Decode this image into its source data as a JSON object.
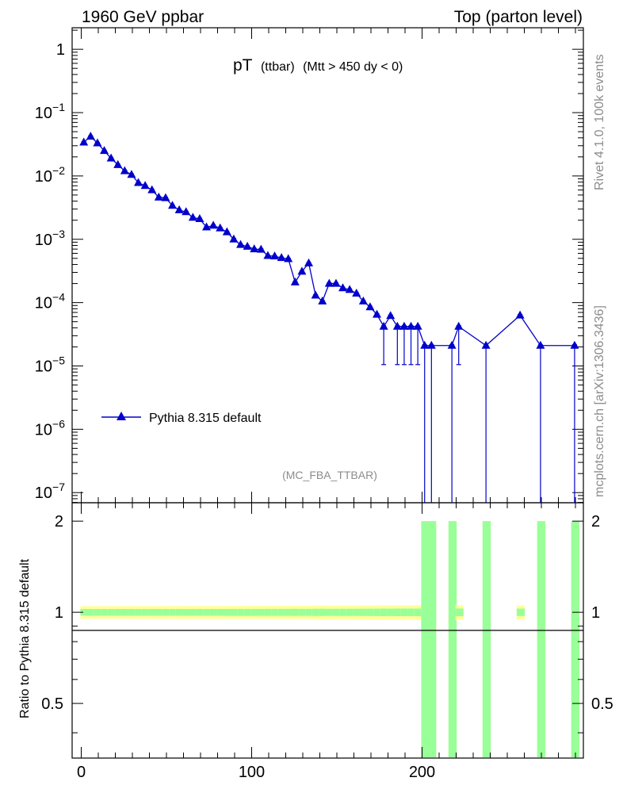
{
  "header": {
    "left": "1960 GeV ppbar",
    "right": "Top (parton level)"
  },
  "side": {
    "rivet": "Rivet 4.1.0,  100k events",
    "mcplots": "mcplots.cern.ch [arXiv:1306.3436]"
  },
  "title": {
    "main": "pT",
    "sub1": "(ttbar)",
    "sub2": "(Mtt > 450 dy < 0)"
  },
  "analysis_tag": "(MC_FBA_TTBAR)",
  "legend": {
    "label": "Pythia 8.315 default"
  },
  "colors": {
    "series": "#0000cc",
    "band_inner": "#99ff99",
    "band_outer": "#ffff99"
  },
  "y_top_ticks": [
    {
      "base": "1",
      "exp": ""
    },
    {
      "base": "10",
      "exp": "−1"
    },
    {
      "base": "10",
      "exp": "−2"
    },
    {
      "base": "10",
      "exp": "−3"
    },
    {
      "base": "10",
      "exp": "−4"
    },
    {
      "base": "10",
      "exp": "−5"
    },
    {
      "base": "10",
      "exp": "−6"
    },
    {
      "base": "10",
      "exp": "−7"
    }
  ],
  "chart_data": {
    "type": "line",
    "title": "pT (ttbar) (Mtt > 450 dy < 0)",
    "xlabel": "",
    "ylabel": "",
    "xlim": [
      -5,
      292
    ],
    "ylim_log10": [
      -7.16,
      0.34
    ],
    "ratio": {
      "ylabel": "Ratio to Pythia 8.315 default",
      "ylim": [
        0.33,
        2.3
      ],
      "tick_values": [
        0.5,
        1,
        2
      ],
      "tick_labels": [
        "0.5",
        "1",
        "2"
      ]
    },
    "x_tick_labels": [
      "0",
      "100",
      "200"
    ],
    "x_tick_values": [
      0,
      100,
      200
    ],
    "series": [
      {
        "name": "Pythia 8.315 default",
        "x": [
          1.5,
          5.5,
          9.5,
          13.5,
          17.5,
          21.5,
          25.5,
          29.5,
          33.5,
          37.5,
          41.5,
          45.5,
          49.5,
          53.5,
          57.5,
          61.5,
          65.5,
          69.5,
          73.5,
          77.5,
          81.5,
          85.5,
          89.5,
          93.5,
          97.5,
          101.5,
          105.5,
          109.5,
          113.5,
          117.5,
          121.5,
          125.5,
          129.5,
          133.5,
          137.5,
          141.5,
          145.5,
          149.5,
          153.5,
          157.5,
          161.5,
          165.5,
          169.5,
          173.5,
          177.5,
          181.5,
          185.5,
          189.5,
          193.5,
          197.5,
          201.5,
          205.5,
          217.5,
          221.5,
          237.5,
          257.5,
          269.5,
          289.5
        ],
        "y": [
          0.034,
          0.042,
          0.033,
          0.025,
          0.019,
          0.015,
          0.012,
          0.0105,
          0.0078,
          0.007,
          0.006,
          0.0046,
          0.0045,
          0.0034,
          0.0029,
          0.0027,
          0.0022,
          0.0021,
          0.00155,
          0.00165,
          0.0015,
          0.0013,
          0.001,
          0.00082,
          0.00077,
          0.0007,
          0.00069,
          0.00055,
          0.00054,
          0.00051,
          0.00049,
          0.00021,
          0.00031,
          0.00042,
          0.00013,
          0.000105,
          0.0002,
          0.0002,
          0.00017,
          0.00016,
          0.00014,
          0.000105,
          8.5e-05,
          6.5e-05,
          4.2e-05,
          6.2e-05,
          4.2e-05,
          4.2e-05,
          4.2e-05,
          4.2e-05,
          2.1e-05,
          2.1e-05,
          2.1e-05,
          4.2e-05,
          2.1e-05,
          6.3e-05,
          2.1e-05,
          2.1e-05
        ]
      }
    ]
  }
}
